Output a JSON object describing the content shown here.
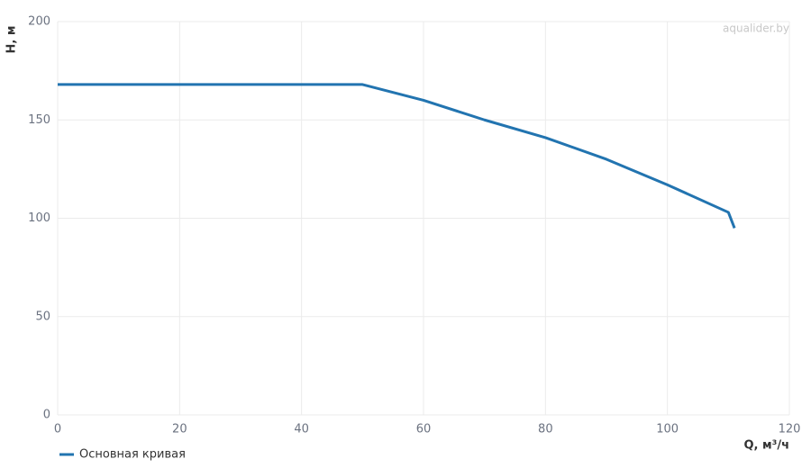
{
  "chart_data": {
    "type": "line",
    "x_label": "Q, м³/ч",
    "y_label": "H, м",
    "watermark": "aqualider.by",
    "x": [
      0,
      50,
      60,
      70,
      80,
      90,
      100,
      110,
      111
    ],
    "series": [
      {
        "name": "Основная кривая",
        "color": "#2274b0",
        "values": [
          168,
          168,
          160,
          150,
          141,
          130,
          117,
          103,
          95
        ]
      }
    ],
    "xlim": [
      0,
      120
    ],
    "xticks": [
      0,
      20,
      40,
      60,
      80,
      100,
      120
    ],
    "ylim": [
      0,
      200
    ],
    "yticks": [
      0,
      50,
      100,
      150,
      200
    ],
    "grid": true,
    "legend": "bottom-left"
  }
}
